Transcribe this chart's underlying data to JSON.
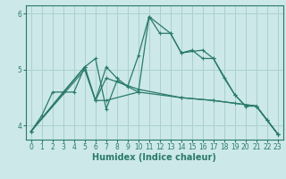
{
  "xlabel": "Humidex (Indice chaleur)",
  "bg_color": "#cce8e8",
  "grid_color": "#aad0d0",
  "line_color": "#2a7a6a",
  "spine_color": "#2a7a6a",
  "xlim": [
    -0.5,
    23.5
  ],
  "ylim": [
    3.75,
    6.15
  ],
  "yticks": [
    4,
    5,
    6
  ],
  "xticks": [
    0,
    1,
    2,
    3,
    4,
    5,
    6,
    7,
    8,
    9,
    10,
    11,
    12,
    13,
    14,
    15,
    16,
    17,
    18,
    19,
    20,
    21,
    22,
    23
  ],
  "lines": [
    {
      "x": [
        0,
        1,
        2,
        3,
        4,
        5,
        6,
        7,
        8,
        9,
        10,
        11,
        12,
        13,
        14,
        15,
        16,
        17,
        18,
        19,
        20,
        21,
        22,
        23
      ],
      "y": [
        3.9,
        4.18,
        4.6,
        4.6,
        4.6,
        5.05,
        4.45,
        5.05,
        4.85,
        4.7,
        5.25,
        5.95,
        5.65,
        5.65,
        5.3,
        5.35,
        5.2,
        5.2,
        4.85,
        4.55,
        4.35,
        4.35,
        4.1,
        3.85
      ]
    },
    {
      "x": [
        0,
        3,
        5,
        6,
        7,
        10,
        14,
        17,
        19,
        21,
        23
      ],
      "y": [
        3.9,
        4.6,
        5.05,
        4.45,
        4.45,
        4.6,
        4.5,
        4.45,
        4.4,
        4.35,
        3.85
      ]
    },
    {
      "x": [
        0,
        5,
        6,
        7,
        10,
        14,
        17,
        21,
        23
      ],
      "y": [
        3.9,
        5.0,
        4.45,
        4.85,
        4.65,
        4.5,
        4.45,
        4.35,
        3.85
      ]
    },
    {
      "x": [
        0,
        5,
        6,
        7,
        8,
        10,
        11,
        13,
        14,
        16,
        17,
        19,
        20,
        21,
        22,
        23
      ],
      "y": [
        3.9,
        5.05,
        5.2,
        4.3,
        4.8,
        4.6,
        5.95,
        5.65,
        5.3,
        5.35,
        5.2,
        4.55,
        4.35,
        4.35,
        4.1,
        3.85
      ]
    }
  ],
  "tick_fontsize": 5.5,
  "xlabel_fontsize": 7,
  "marker": "+",
  "markersize": 3,
  "linewidth": 0.9
}
